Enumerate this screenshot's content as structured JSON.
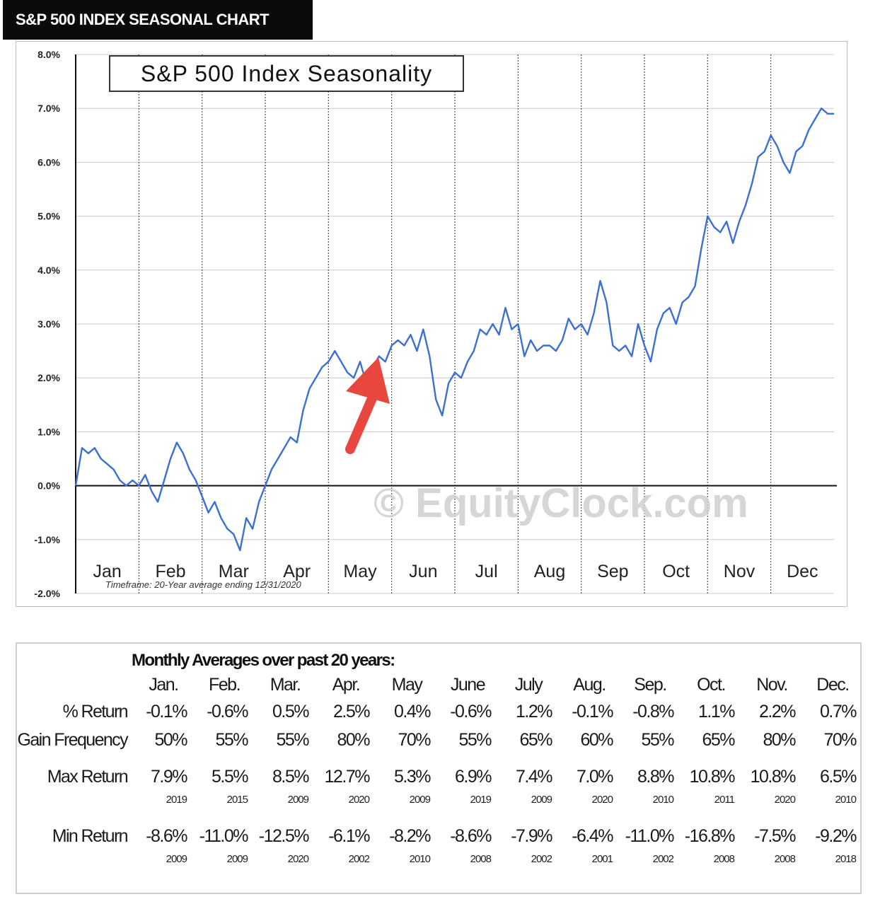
{
  "header": {
    "title": "S&P 500 INDEX SEASONAL CHART"
  },
  "chart_data": {
    "type": "line",
    "title": "S&P 500 Index Seasonality",
    "footnote": "Timeframe: 20-Year average ending 12/31/2020",
    "watermark": "© EquityClock.com",
    "ylim": [
      -2.0,
      8.0
    ],
    "yticks": [
      "8.0%",
      "7.0%",
      "6.0%",
      "5.0%",
      "4.0%",
      "3.0%",
      "2.0%",
      "1.0%",
      "0.0%",
      "-1.0%",
      "-2.0%"
    ],
    "months": [
      "Jan",
      "Feb",
      "Mar",
      "Apr",
      "May",
      "Jun",
      "Jul",
      "Aug",
      "Sep",
      "Oct",
      "Nov",
      "Dec"
    ],
    "grid": true,
    "line_color": "#3b6fd4",
    "arrow_color": "#e8473f",
    "series": [
      {
        "x": [
          0,
          0.1,
          0.2,
          0.3,
          0.4,
          0.5,
          0.6,
          0.7,
          0.8,
          0.9,
          1.0,
          1.1,
          1.2,
          1.3,
          1.4,
          1.5,
          1.6,
          1.7,
          1.8,
          1.9,
          2.0,
          2.1,
          2.2,
          2.3,
          2.4,
          2.5,
          2.6,
          2.7,
          2.8,
          2.9,
          3.0,
          3.1,
          3.2,
          3.3,
          3.4,
          3.5,
          3.6,
          3.7,
          3.8,
          3.9,
          4.0,
          4.1,
          4.2,
          4.3,
          4.4,
          4.5,
          4.6,
          4.7,
          4.8,
          4.9,
          5.0,
          5.1,
          5.2,
          5.3,
          5.4,
          5.5,
          5.6,
          5.7,
          5.8,
          5.9,
          6.0,
          6.1,
          6.2,
          6.3,
          6.4,
          6.5,
          6.6,
          6.7,
          6.8,
          6.9,
          7.0,
          7.1,
          7.2,
          7.3,
          7.4,
          7.5,
          7.6,
          7.7,
          7.8,
          7.9,
          8.0,
          8.1,
          8.2,
          8.3,
          8.4,
          8.5,
          8.6,
          8.7,
          8.8,
          8.9,
          9.0,
          9.1,
          9.2,
          9.3,
          9.4,
          9.5,
          9.6,
          9.7,
          9.8,
          9.9,
          10.0,
          10.1,
          10.2,
          10.3,
          10.4,
          10.5,
          10.6,
          10.7,
          10.8,
          10.9,
          11.0,
          11.1,
          11.2,
          11.3,
          11.4,
          11.5,
          11.6,
          11.7,
          11.8,
          11.9,
          12.0
        ],
        "y": [
          0.0,
          0.7,
          0.6,
          0.7,
          0.5,
          0.4,
          0.3,
          0.1,
          0.0,
          0.1,
          0.0,
          0.2,
          -0.1,
          -0.3,
          0.1,
          0.5,
          0.8,
          0.6,
          0.3,
          0.1,
          -0.2,
          -0.5,
          -0.3,
          -0.6,
          -0.8,
          -0.9,
          -1.2,
          -0.6,
          -0.8,
          -0.3,
          0.0,
          0.3,
          0.5,
          0.7,
          0.9,
          0.8,
          1.4,
          1.8,
          2.0,
          2.2,
          2.3,
          2.5,
          2.3,
          2.1,
          2.0,
          2.3,
          1.9,
          2.2,
          2.4,
          2.3,
          2.6,
          2.7,
          2.6,
          2.8,
          2.5,
          2.9,
          2.4,
          1.6,
          1.3,
          1.9,
          2.1,
          2.0,
          2.3,
          2.5,
          2.9,
          2.8,
          3.0,
          2.8,
          3.3,
          2.9,
          3.0,
          2.4,
          2.7,
          2.5,
          2.6,
          2.6,
          2.5,
          2.7,
          3.1,
          2.9,
          3.0,
          2.8,
          3.2,
          3.8,
          3.4,
          2.6,
          2.5,
          2.6,
          2.4,
          3.0,
          2.6,
          2.3,
          2.9,
          3.2,
          3.3,
          3.0,
          3.4,
          3.5,
          3.7,
          4.4,
          5.0,
          4.8,
          4.7,
          4.9,
          4.5,
          4.9,
          5.2,
          5.6,
          6.1,
          6.2,
          6.5,
          6.3,
          6.0,
          5.8,
          6.2,
          6.3,
          6.6,
          6.8,
          7.0,
          6.9,
          6.9
        ]
      }
    ]
  },
  "table": {
    "title": "Monthly Averages over past 20 years:",
    "months": [
      "Jan.",
      "Feb.",
      "Mar.",
      "Apr.",
      "May",
      "June",
      "July",
      "Aug.",
      "Sep.",
      "Oct.",
      "Nov.",
      "Dec."
    ],
    "rows": [
      {
        "label": "% Return",
        "values": [
          "-0.1%",
          "-0.6%",
          "0.5%",
          "2.5%",
          "0.4%",
          "-0.6%",
          "1.2%",
          "-0.1%",
          "-0.8%",
          "1.1%",
          "2.2%",
          "0.7%"
        ]
      },
      {
        "label": "Gain Frequency",
        "values": [
          "50%",
          "55%",
          "55%",
          "80%",
          "70%",
          "55%",
          "65%",
          "60%",
          "55%",
          "65%",
          "80%",
          "70%"
        ]
      },
      {
        "label": "Max Return",
        "values": [
          "7.9%",
          "5.5%",
          "8.5%",
          "12.7%",
          "5.3%",
          "6.9%",
          "7.4%",
          "7.0%",
          "8.8%",
          "10.8%",
          "10.8%",
          "6.5%"
        ],
        "years": [
          "2019",
          "2015",
          "2009",
          "2020",
          "2009",
          "2019",
          "2009",
          "2020",
          "2010",
          "2011",
          "2020",
          "2010"
        ]
      },
      {
        "label": "Min Return",
        "values": [
          "-8.6%",
          "-11.0%",
          "-12.5%",
          "-6.1%",
          "-8.2%",
          "-8.6%",
          "-7.9%",
          "-6.4%",
          "-11.0%",
          "-16.8%",
          "-7.5%",
          "-9.2%"
        ],
        "years": [
          "2009",
          "2009",
          "2020",
          "2002",
          "2010",
          "2008",
          "2002",
          "2001",
          "2002",
          "2008",
          "2008",
          "2018"
        ]
      }
    ]
  }
}
